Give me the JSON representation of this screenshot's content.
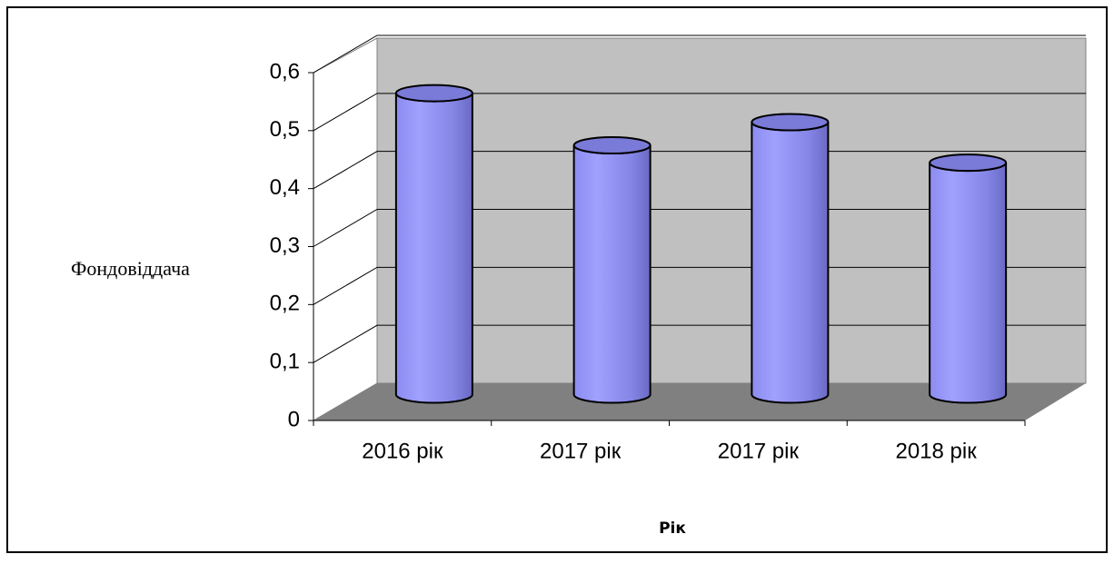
{
  "chart_data": {
    "type": "bar3d",
    "categories": [
      "2016 рік",
      "2017 рік",
      "2017 рік",
      "2018 рік"
    ],
    "values": [
      0.52,
      0.43,
      0.47,
      0.4
    ],
    "color": "#9999ff",
    "ylim": [
      0,
      0.6
    ],
    "yticks": [
      0,
      {
        "value": 0.1,
        "label": "0,1"
      },
      {
        "value": 0.2,
        "label": "0,2"
      },
      {
        "value": 0.3,
        "label": "0,3"
      },
      {
        "value": 0.4,
        "label": "0,4"
      },
      {
        "value": 0.5,
        "label": "0,5"
      },
      {
        "value": 0.6,
        "label": "0,6"
      }
    ],
    "ylabel": "Фондовіддача",
    "xlabel": "Рік",
    "grid": true
  }
}
